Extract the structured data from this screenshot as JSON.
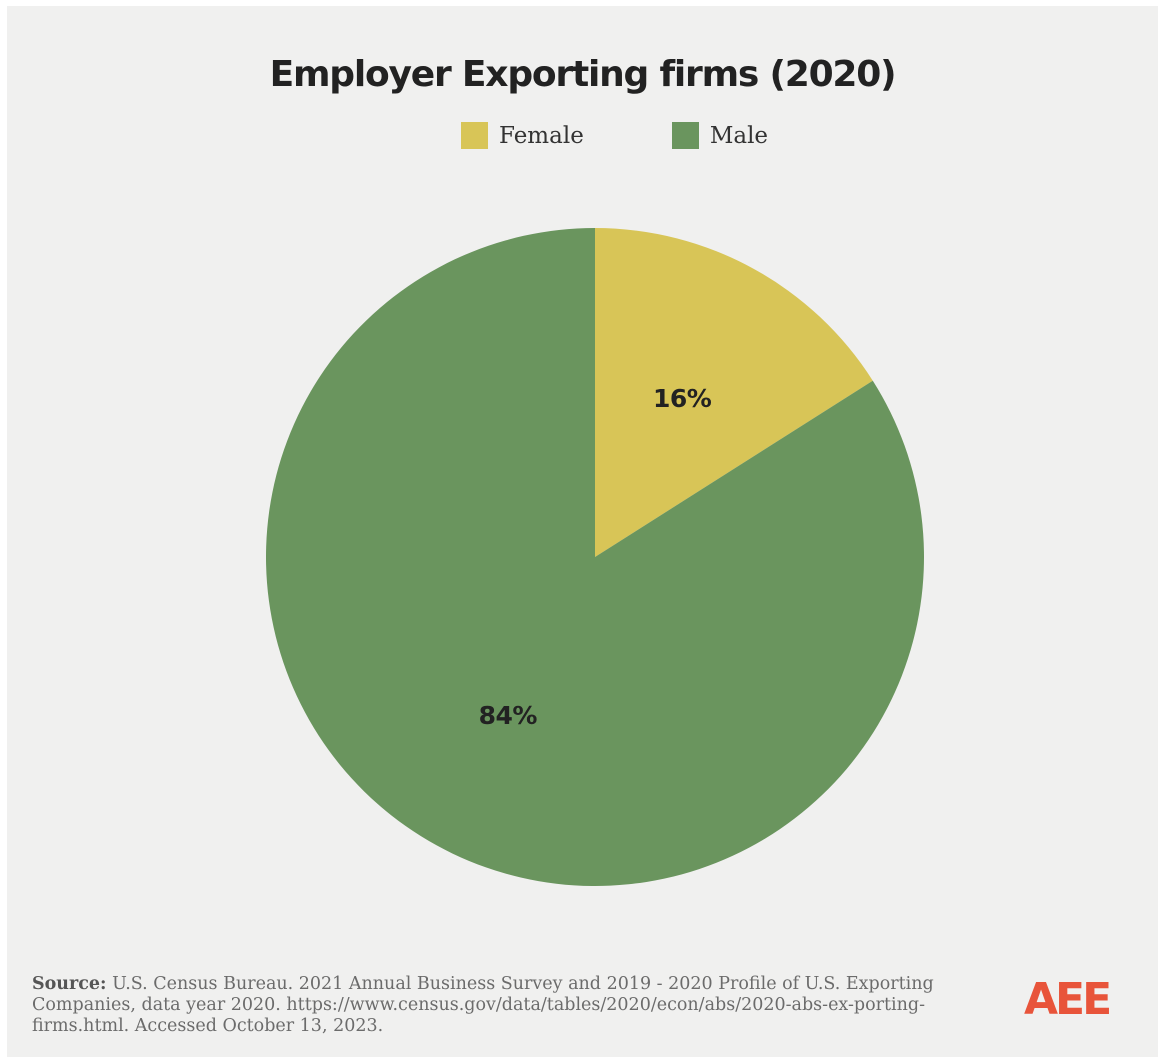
{
  "chart_data": {
    "type": "pie",
    "title": "Employer Exporting firms (2020)",
    "categories": [
      "Female",
      "Male"
    ],
    "values": [
      16,
      84
    ],
    "labels": [
      "16%",
      "84%"
    ],
    "colors": [
      "#d8c557",
      "#6a955e"
    ],
    "legend_position": "top-center",
    "start_angle": "12 o'clock",
    "direction": "clockwise"
  },
  "source": {
    "prefix": "Source:",
    "text": "U.S. Census Bureau. 2021 Annual Business Survey and 2019 - 2020 Profile of U.S. Exporting Companies, data year 2020. https://www.census.gov/data/tables/2020/econ/abs/2020-abs-ex-porting-firms.html. Accessed October 13, 2023."
  },
  "logo": {
    "text": "AEE",
    "color": "#e8543a"
  },
  "background_color": "#f0f0ef"
}
